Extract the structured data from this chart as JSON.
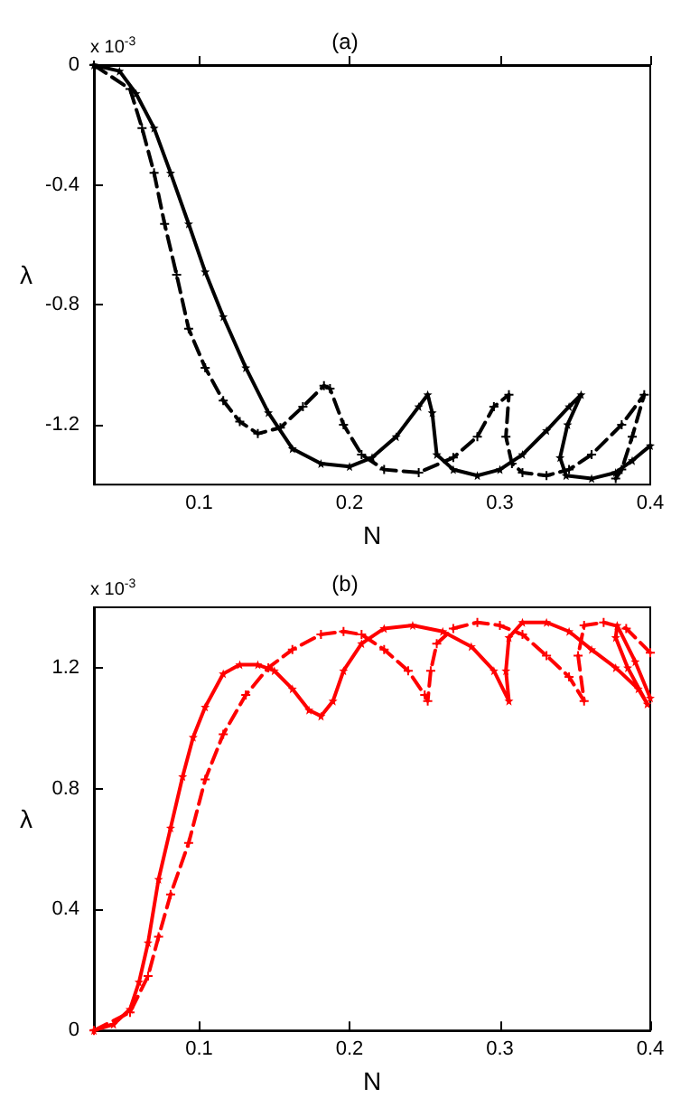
{
  "chart_data": [
    {
      "type": "line",
      "title": "(a)",
      "xlabel": "N",
      "ylabel": "λ",
      "annotations": [
        "x 10$^{-3}$"
      ],
      "xlim": [
        0.03,
        0.4
      ],
      "xticks": [
        0.1,
        0.2,
        0.3,
        0.4
      ],
      "ylim": [
        -1.4,
        0
      ],
      "yticks": [
        -1.2,
        -0.8,
        -0.4,
        0
      ],
      "grid": false,
      "series": [
        {
          "color": "#000000",
          "line_style": "solid",
          "marker": "star",
          "x": [
            0.03,
            0.047,
            0.058,
            0.07,
            0.081,
            0.093,
            0.104,
            0.116,
            0.131,
            0.146,
            0.162,
            0.181,
            0.2,
            0.215,
            0.231,
            0.246,
            0.252,
            0.255,
            0.258,
            0.269,
            0.285,
            0.3,
            0.315,
            0.331,
            0.346,
            0.354,
            0.345,
            0.34,
            0.344,
            0.361,
            0.377,
            0.388,
            0.4
          ],
          "values": [
            0,
            -0.02,
            -0.095,
            -0.21,
            -0.36,
            -0.53,
            -0.69,
            -0.84,
            -1.01,
            -1.16,
            -1.28,
            -1.33,
            -1.34,
            -1.31,
            -1.24,
            -1.14,
            -1.1,
            -1.16,
            -1.3,
            -1.35,
            -1.37,
            -1.35,
            -1.3,
            -1.22,
            -1.14,
            -1.1,
            -1.2,
            -1.31,
            -1.37,
            -1.38,
            -1.36,
            -1.32,
            -1.27
          ]
        },
        {
          "color": "#000000",
          "line_style": "dashed",
          "marker": "cross",
          "x": [
            0.03,
            0.054,
            0.062,
            0.07,
            0.077,
            0.085,
            0.093,
            0.104,
            0.116,
            0.127,
            0.139,
            0.154,
            0.169,
            0.183,
            0.187,
            0.196,
            0.208,
            0.223,
            0.246,
            0.269,
            0.285,
            0.296,
            0.306,
            0.304,
            0.308,
            0.315,
            0.331,
            0.346,
            0.361,
            0.381,
            0.396,
            0.388,
            0.381,
            0.377
          ],
          "values": [
            0,
            -0.08,
            -0.21,
            -0.36,
            -0.53,
            -0.7,
            -0.88,
            -1.01,
            -1.12,
            -1.19,
            -1.23,
            -1.21,
            -1.14,
            -1.07,
            -1.08,
            -1.2,
            -1.3,
            -1.35,
            -1.36,
            -1.31,
            -1.24,
            -1.14,
            -1.1,
            -1.24,
            -1.33,
            -1.36,
            -1.37,
            -1.35,
            -1.3,
            -1.2,
            -1.1,
            -1.24,
            -1.35,
            -1.38
          ]
        }
      ]
    },
    {
      "type": "line",
      "title": "(b)",
      "xlabel": "N",
      "ylabel": "λ",
      "annotations": [
        "x 10$^{-3}$"
      ],
      "xlim": [
        0.03,
        0.4
      ],
      "xticks": [
        0.1,
        0.2,
        0.3,
        0.4
      ],
      "ylim": [
        0,
        1.4
      ],
      "yticks": [
        0,
        0.4,
        0.8,
        1.2
      ],
      "grid": false,
      "series": [
        {
          "color": "#ff0000",
          "line_style": "solid",
          "marker": "star",
          "x": [
            0.03,
            0.043,
            0.054,
            0.06,
            0.066,
            0.073,
            0.081,
            0.089,
            0.096,
            0.104,
            0.116,
            0.127,
            0.139,
            0.15,
            0.162,
            0.173,
            0.181,
            0.189,
            0.196,
            0.208,
            0.223,
            0.242,
            0.262,
            0.281,
            0.296,
            0.306,
            0.304,
            0.306,
            0.315,
            0.331,
            0.346,
            0.361,
            0.377,
            0.392,
            0.398,
            0.385,
            0.377,
            0.378,
            0.39,
            0.4
          ],
          "values": [
            0,
            0.02,
            0.07,
            0.16,
            0.29,
            0.5,
            0.67,
            0.84,
            0.97,
            1.07,
            1.18,
            1.21,
            1.21,
            1.19,
            1.13,
            1.06,
            1.04,
            1.09,
            1.19,
            1.28,
            1.33,
            1.34,
            1.32,
            1.27,
            1.19,
            1.09,
            1.19,
            1.3,
            1.35,
            1.35,
            1.32,
            1.26,
            1.2,
            1.13,
            1.08,
            1.2,
            1.3,
            1.34,
            1.22,
            1.1
          ]
        },
        {
          "color": "#ff0000",
          "line_style": "dashed",
          "marker": "cross",
          "x": [
            0.03,
            0.054,
            0.066,
            0.073,
            0.081,
            0.093,
            0.104,
            0.116,
            0.131,
            0.146,
            0.162,
            0.181,
            0.196,
            0.208,
            0.223,
            0.239,
            0.25,
            0.252,
            0.254,
            0.258,
            0.269,
            0.285,
            0.3,
            0.315,
            0.331,
            0.346,
            0.356,
            0.352,
            0.356,
            0.369,
            0.384,
            0.4
          ],
          "values": [
            0,
            0.06,
            0.18,
            0.31,
            0.45,
            0.62,
            0.83,
            0.98,
            1.11,
            1.2,
            1.26,
            1.31,
            1.32,
            1.31,
            1.26,
            1.19,
            1.11,
            1.09,
            1.19,
            1.28,
            1.33,
            1.35,
            1.34,
            1.31,
            1.24,
            1.17,
            1.09,
            1.24,
            1.34,
            1.35,
            1.33,
            1.25
          ]
        }
      ]
    }
  ]
}
